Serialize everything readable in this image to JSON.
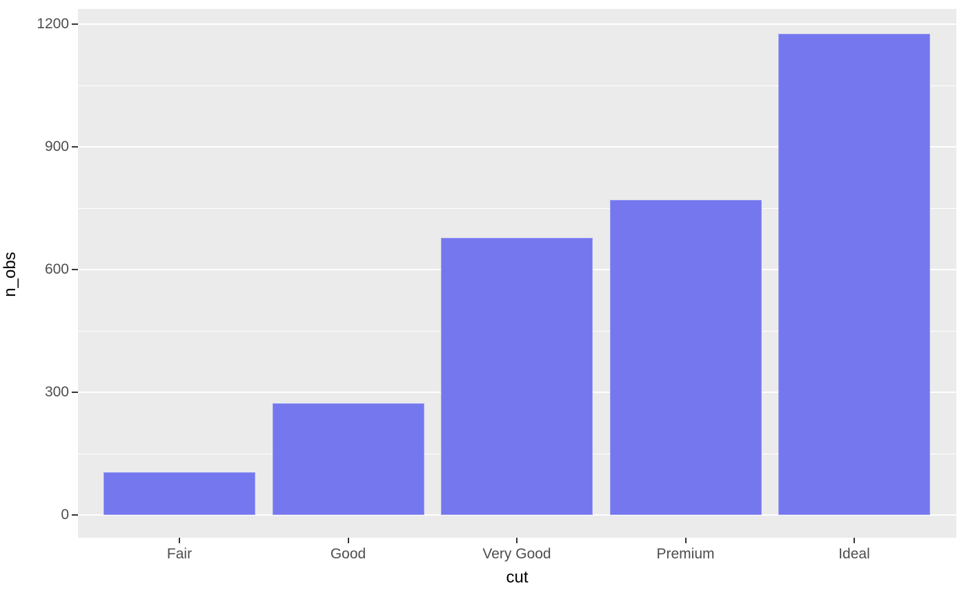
{
  "figure": {
    "background": "#FFFFFF",
    "panel_background": "#EBEBEB",
    "grid_color": "#FFFFFF",
    "bar_fill": "#7477EE",
    "tick_color": "#333333",
    "axis_text_color": "#4D4D4D",
    "axis_title_color": "#000000"
  },
  "chart_data": {
    "type": "bar",
    "title": "",
    "xlabel": "cut",
    "ylabel": "n_obs",
    "categories": [
      "Fair",
      "Good",
      "Very Good",
      "Premium",
      "Ideal"
    ],
    "values": [
      105,
      273,
      677,
      771,
      1176
    ],
    "ylim": [
      0,
      1200
    ],
    "yticks": [
      0,
      300,
      600,
      900,
      1200
    ],
    "ytick_labels": [
      "0",
      "300",
      "600",
      "900",
      "1200"
    ],
    "minor_gridlines": [
      150,
      450,
      750,
      1050
    ],
    "grid": "on",
    "legend": "none",
    "bar_orientation": "vertical"
  }
}
